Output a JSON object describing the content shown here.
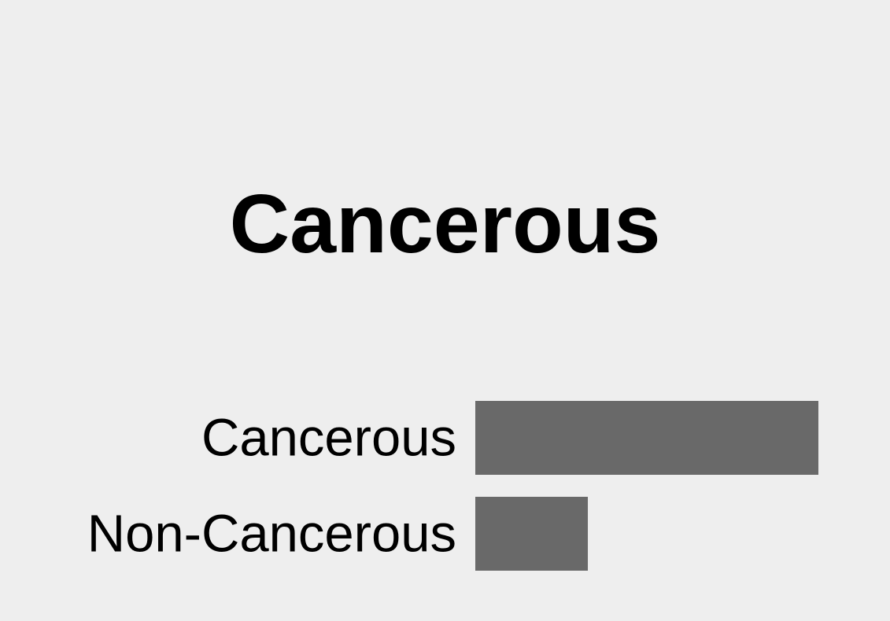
{
  "header": {
    "title": "Cancerous"
  },
  "colors": {
    "background": "#eeeeee",
    "bar": "#696969",
    "text": "#000000"
  },
  "chart_data": {
    "type": "bar",
    "orientation": "horizontal",
    "title": "",
    "xlabel": "",
    "ylabel": "",
    "grid": false,
    "legend": "none",
    "categories": [
      "Cancerous",
      "Non-Cancerous"
    ],
    "values": [
      0.753,
      0.247
    ],
    "xlim": [
      0,
      0.753
    ]
  }
}
